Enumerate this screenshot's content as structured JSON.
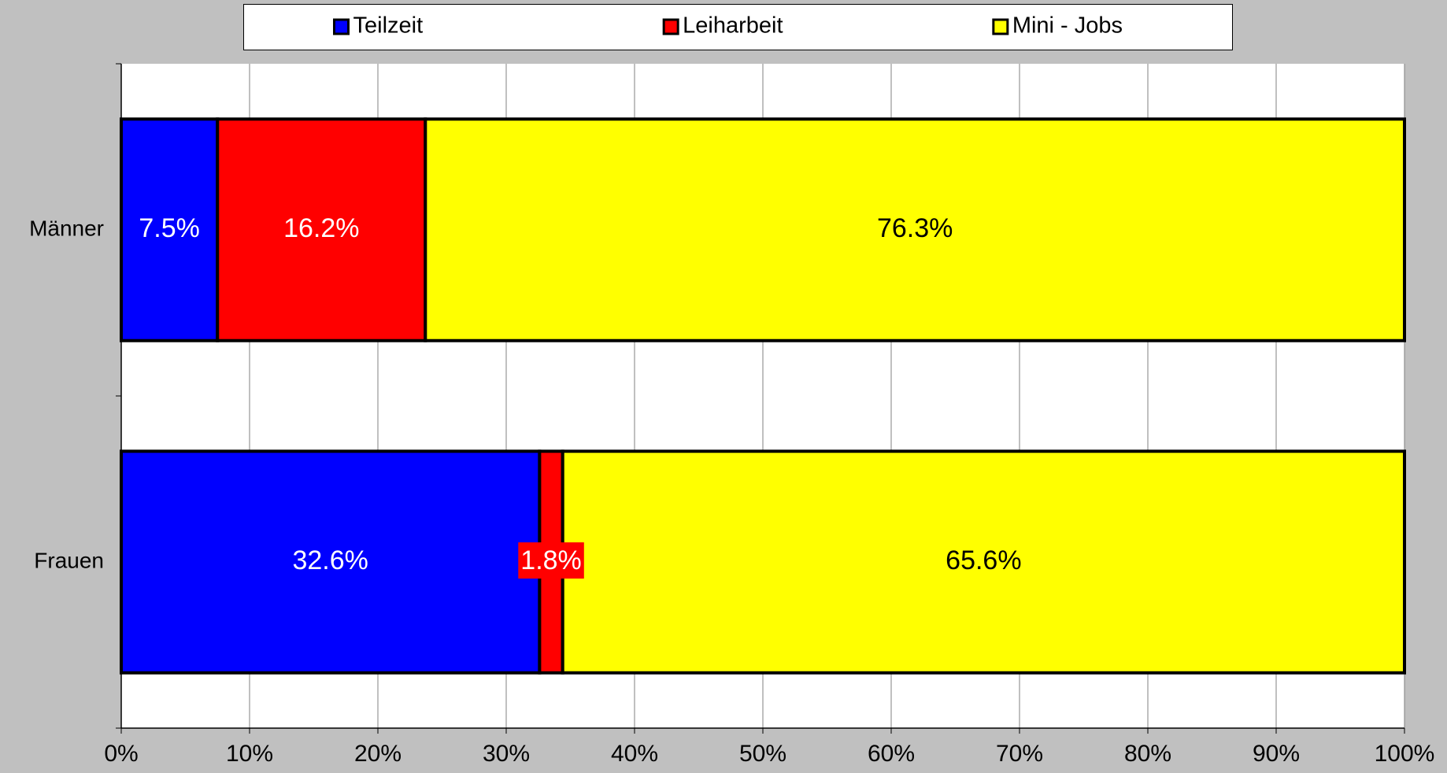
{
  "chart_data": {
    "type": "stacked_bar_horizontal",
    "categories": [
      "Männer",
      "Frauen"
    ],
    "series": [
      {
        "name": "Teilzeit",
        "color": "#0000ff",
        "values": [
          7.5,
          32.6
        ],
        "value_labels": [
          "7.5%",
          "32.6%"
        ]
      },
      {
        "name": "Leiharbeit",
        "color": "#ff0000",
        "values": [
          16.2,
          1.8
        ],
        "value_labels": [
          "16.2%",
          "1.8%"
        ]
      },
      {
        "name": "Mini - Jobs",
        "color": "#ffff00",
        "values": [
          76.3,
          65.6
        ],
        "value_labels": [
          "76.3%",
          "65.6%"
        ]
      }
    ],
    "xlim": [
      0,
      100
    ],
    "xticks": [
      {
        "value": 0,
        "label": "0%"
      },
      {
        "value": 10,
        "label": "10%"
      },
      {
        "value": 20,
        "label": "20%"
      },
      {
        "value": 30,
        "label": "30%"
      },
      {
        "value": 40,
        "label": "40%"
      },
      {
        "value": 50,
        "label": "50%"
      },
      {
        "value": 60,
        "label": "60%"
      },
      {
        "value": 70,
        "label": "70%"
      },
      {
        "value": 80,
        "label": "80%"
      },
      {
        "value": 90,
        "label": "90%"
      },
      {
        "value": 100,
        "label": "100%"
      }
    ],
    "grid": true,
    "legend": "top"
  }
}
